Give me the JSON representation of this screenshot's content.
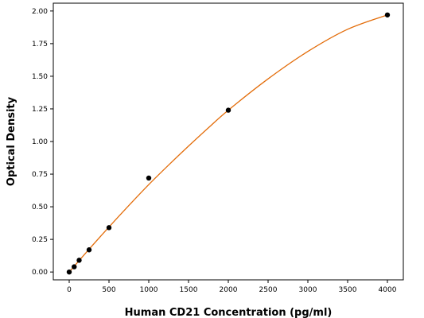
{
  "chart_data": {
    "type": "scatter",
    "title": "",
    "xlabel": "Human CD21 Concentration (pg/ml)",
    "ylabel": "Optical Density",
    "xlim": [
      -200,
      4200
    ],
    "ylim": [
      -0.06,
      2.06
    ],
    "x_ticks": [
      0,
      500,
      1000,
      1500,
      2000,
      2500,
      3000,
      3500,
      4000
    ],
    "y_ticks": [
      0.0,
      0.25,
      0.5,
      0.75,
      1.0,
      1.25,
      1.5,
      1.75,
      2.0
    ],
    "x_tick_labels": [
      "0",
      "500",
      "1000",
      "1500",
      "2000",
      "2500",
      "3000",
      "3500",
      "4000"
    ],
    "y_tick_labels": [
      "0.00",
      "0.25",
      "0.50",
      "0.75",
      "1.00",
      "1.25",
      "1.50",
      "1.75",
      "2.00"
    ],
    "grid": false,
    "series": [
      {
        "kind": "points",
        "color": "#000000",
        "x": [
          0,
          62.5,
          125,
          250,
          500,
          1000,
          2000,
          4000
        ],
        "y": [
          0.0,
          0.04,
          0.09,
          0.17,
          0.34,
          0.72,
          1.24,
          1.97
        ]
      },
      {
        "kind": "fit-curve",
        "color": "#e36c09",
        "x": [
          0,
          250,
          500,
          750,
          1000,
          1250,
          1500,
          1750,
          2000,
          2500,
          3000,
          3500,
          4000
        ],
        "y": [
          0.0,
          0.175,
          0.345,
          0.51,
          0.67,
          0.82,
          0.965,
          1.105,
          1.24,
          1.48,
          1.69,
          1.86,
          1.97
        ]
      }
    ]
  }
}
